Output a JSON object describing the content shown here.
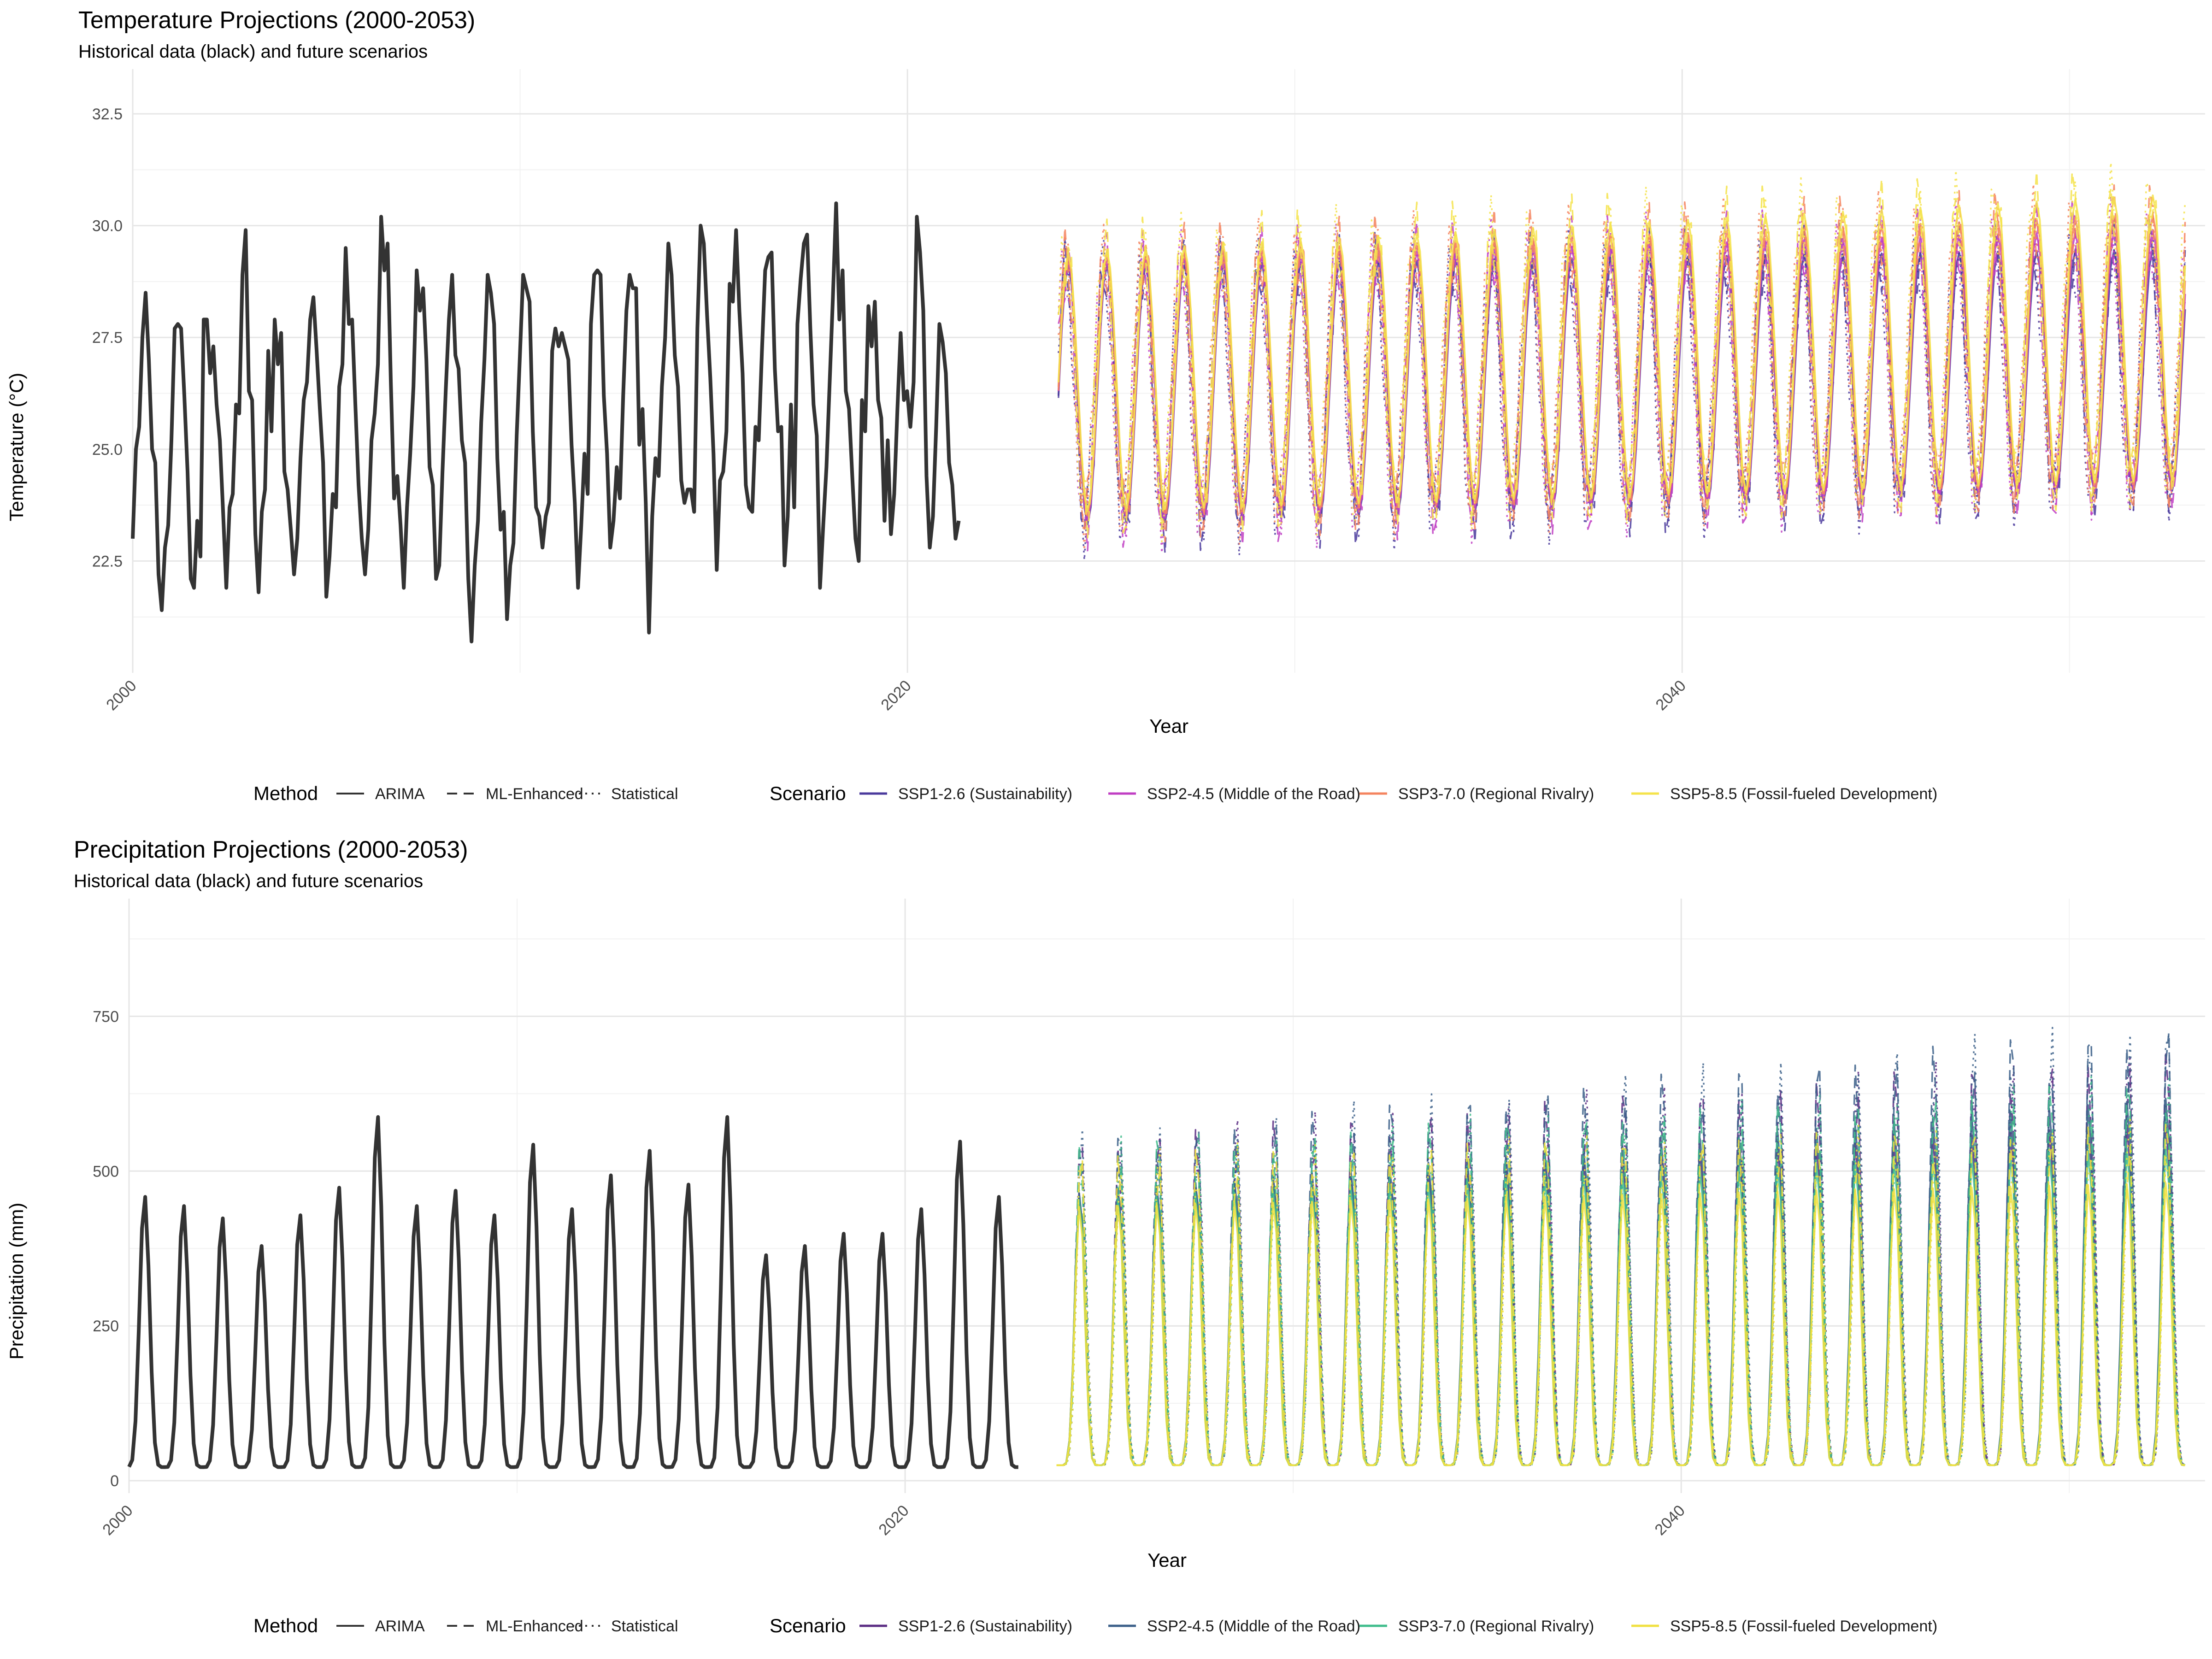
{
  "chart_data": [
    {
      "type": "line",
      "title": "Temperature Projections (2000-2053)",
      "subtitle": "Historical data (black) and future scenarios",
      "xlabel": "Year",
      "ylabel": "Temperature (°C)",
      "xlim": [
        2000,
        2053.5
      ],
      "ylim": [
        20.0,
        33.5
      ],
      "x_ticks": [
        2000,
        2020,
        2040
      ],
      "x_tick_labels": [
        "2000",
        "2020",
        "2040"
      ],
      "y_ticks": [
        22.5,
        25.0,
        27.5,
        30.0,
        32.5
      ],
      "y_tick_labels": [
        "22.5",
        "25.0",
        "27.5",
        "30.0",
        "32.5"
      ],
      "grid": true,
      "legend_position": "bottom",
      "historical": {
        "x_start": 2000.0,
        "step": 0.0833,
        "color": "#333333",
        "values": [
          23.0,
          25.0,
          25.5,
          27.5,
          28.5,
          27.0,
          25.0,
          24.7,
          22.2,
          21.4,
          22.8,
          23.3,
          25.2,
          27.7,
          27.8,
          27.7,
          26.2,
          24.5,
          22.1,
          21.9,
          23.4,
          22.6,
          27.9,
          27.9,
          26.7,
          27.3,
          26.0,
          25.2,
          23.6,
          21.9,
          23.7,
          24.0,
          26.0,
          25.8,
          28.9,
          29.9,
          26.3,
          26.1,
          23.1,
          21.8,
          23.6,
          24.1,
          27.2,
          25.4,
          27.9,
          26.9,
          27.6,
          24.5,
          24.1,
          23.2,
          22.2,
          23.0,
          24.8,
          26.1,
          26.5,
          27.9,
          28.4,
          27.2,
          25.9,
          24.7,
          21.7,
          22.6,
          24.0,
          23.7,
          26.4,
          26.9,
          29.5,
          27.8,
          27.9,
          26.0,
          24.2,
          23.0,
          22.2,
          23.2,
          25.2,
          25.8,
          26.9,
          30.2,
          29.0,
          29.6,
          26.5,
          23.9,
          24.4,
          23.3,
          21.9,
          23.7,
          24.9,
          26.4,
          29.0,
          28.1,
          28.6,
          27.0,
          24.6,
          24.2,
          22.1,
          22.4,
          24.5,
          26.3,
          27.9,
          28.9,
          27.1,
          26.8,
          25.2,
          24.7,
          22.1,
          20.7,
          22.4,
          23.4,
          25.6,
          27.0,
          28.9,
          28.5,
          27.8,
          24.8,
          23.2,
          23.6,
          21.2,
          22.4,
          22.9,
          25.3,
          27.1,
          28.9,
          28.6,
          28.3,
          25.4,
          23.7,
          23.5,
          22.8,
          23.5,
          23.8,
          27.2,
          27.7,
          27.3,
          27.6,
          27.3,
          27.0,
          25.1,
          23.8,
          21.9,
          23.3,
          24.9,
          24.0,
          27.8,
          28.9,
          29.0,
          28.9,
          26.2,
          24.9,
          22.8,
          23.4,
          24.6,
          23.9,
          26.2,
          28.1,
          28.9,
          28.6,
          28.6,
          25.1,
          25.9,
          23.8,
          20.9,
          23.5,
          24.8,
          24.4,
          26.4,
          27.5,
          29.6,
          28.9,
          27.1,
          26.4,
          24.3,
          23.8,
          24.1,
          24.1,
          23.6,
          27.7,
          30.0,
          29.6,
          28.0,
          26.6,
          24.9,
          22.3,
          24.3,
          24.5,
          25.4,
          28.7,
          28.3,
          29.9,
          28.1,
          26.7,
          24.2,
          23.7,
          23.6,
          25.5,
          25.2,
          27.2,
          29.0,
          29.3,
          29.4,
          26.8,
          25.4,
          25.5,
          22.4,
          23.5,
          26.0,
          23.7,
          27.8,
          28.8,
          29.6,
          29.8,
          27.7,
          26.0,
          25.3,
          21.9,
          23.3,
          24.6,
          26.5,
          28.4,
          30.5,
          27.9,
          29.0,
          26.3,
          25.9,
          24.4,
          23.0,
          22.5,
          26.1,
          25.4,
          28.2,
          27.3,
          28.3,
          26.1,
          25.7,
          23.4,
          25.2,
          23.1,
          24.0,
          25.9,
          27.6,
          26.1,
          26.3,
          25.5,
          26.5,
          30.2,
          29.4,
          28.1,
          24.4,
          22.8,
          23.5,
          25.5,
          27.8,
          27.4,
          26.7,
          24.7,
          24.2,
          23.0,
          23.4
        ]
      },
      "series": [
        {
          "name": "SSP1-2.6 (Sustainability)",
          "color": "#4a3a9c",
          "base": 26.2,
          "amp_start": 2.9,
          "amp_end": 2.7,
          "trend": 0.02
        },
        {
          "name": "SSP2-4.5 (Middle of the Road)",
          "color": "#c03ec3",
          "base": 26.3,
          "amp_start": 2.9,
          "amp_end": 2.9,
          "trend": 0.025
        },
        {
          "name": "SSP3-7.0 (Regional Rivalry)",
          "color": "#f4845f",
          "base": 26.4,
          "amp_start": 2.9,
          "amp_end": 3.0,
          "trend": 0.03
        },
        {
          "name": "SSP5-8.5 (Fossil-fueled Development)",
          "color": "#f5e34a",
          "base": 26.5,
          "amp_start": 2.9,
          "amp_end": 3.2,
          "trend": 0.035
        }
      ],
      "methods": [
        {
          "name": "ARIMA",
          "dash": "solid"
        },
        {
          "name": "ML-Enhanced",
          "dash": "dashed"
        },
        {
          "name": "Statistical",
          "dash": "dotted"
        }
      ],
      "projection_range": [
        2023.9,
        2053.0
      ],
      "legend_method_title": "Method",
      "legend_scenario_title": "Scenario"
    },
    {
      "type": "line",
      "title": "Precipitation Projections (2000-2053)",
      "subtitle": "Historical data (black) and future scenarios",
      "xlabel": "Year",
      "ylabel": "Precipitation (mm)",
      "xlim": [
        2000,
        2053.5
      ],
      "ylim": [
        -20,
        940
      ],
      "x_ticks": [
        2000,
        2020,
        2040
      ],
      "x_tick_labels": [
        "2000",
        "2020",
        "2040"
      ],
      "y_ticks": [
        0,
        250,
        500,
        750
      ],
      "y_tick_labels": [
        "0",
        "250",
        "500",
        "750"
      ],
      "grid": true,
      "legend_position": "bottom",
      "historical": {
        "x_start": 2000.0,
        "step": 0.0833,
        "color": "#333333",
        "peaks": [
          440,
          425,
          405,
          360,
          410,
          455,
          570,
          425,
          450,
          410,
          525,
          420,
          475,
          515,
          460,
          570,
          345,
          360,
          380,
          380,
          420,
          530,
          440
        ]
      },
      "series": [
        {
          "name": "SSP1-2.6 (Sustainability)",
          "color": "#5b2c83",
          "peak_start": 440,
          "peak_end": 560
        },
        {
          "name": "SSP2-4.5 (Middle of the Road)",
          "color": "#3b5f88",
          "peak_start": 440,
          "peak_end": 600
        },
        {
          "name": "SSP3-7.0 (Regional Rivalry)",
          "color": "#3fbc8b",
          "peak_start": 430,
          "peak_end": 520
        },
        {
          "name": "SSP5-8.5 (Fossil-fueled Development)",
          "color": "#f0e040",
          "peak_start": 420,
          "peak_end": 460
        }
      ],
      "methods": [
        {
          "name": "ARIMA",
          "dash": "solid"
        },
        {
          "name": "ML-Enhanced",
          "dash": "dashed"
        },
        {
          "name": "Statistical",
          "dash": "dotted"
        }
      ],
      "projection_range": [
        2023.9,
        2053.0
      ],
      "legend_method_title": "Method",
      "legend_scenario_title": "Scenario"
    }
  ]
}
